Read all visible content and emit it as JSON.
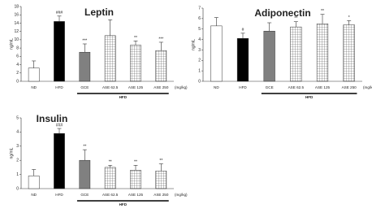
{
  "chart_data": [
    {
      "type": "bar",
      "title": "Leptin",
      "y_label": "ng/mL",
      "categories": [
        "ND",
        "HFD",
        "GCE",
        "ASE 62.5",
        "ASE 125",
        "ASE 250"
      ],
      "values": [
        3.2,
        14.4,
        7.0,
        11.0,
        8.7,
        7.4
      ],
      "errors": [
        1.7,
        1.3,
        2.0,
        3.8,
        1.0,
        2.0
      ],
      "annotations": [
        null,
        "###",
        "***",
        null,
        "**",
        "***"
      ],
      "colors": [
        "#ffffff",
        "#000000",
        "#808080",
        "#ffffff",
        "#ffffff",
        "#ffffff"
      ],
      "hatch": [
        false,
        false,
        false,
        true,
        true,
        true
      ],
      "group_label": "HFD",
      "unit_label": "(mg/kg)",
      "ylim": [
        0,
        18
      ],
      "yticks": [
        0,
        2,
        4,
        6,
        8,
        10,
        12,
        14,
        16,
        18
      ]
    },
    {
      "type": "bar",
      "title": "Adiponectin",
      "y_label": "ng/mL",
      "categories": [
        "ND",
        "HFD",
        "GCE",
        "ASE 62.5",
        "ASE 125",
        "ASE 250"
      ],
      "values": [
        5.3,
        4.1,
        4.8,
        5.2,
        5.5,
        5.4
      ],
      "errors": [
        0.8,
        0.5,
        0.8,
        0.5,
        0.9,
        0.4
      ],
      "annotations": [
        null,
        "#",
        null,
        "**",
        "**",
        "*"
      ],
      "colors": [
        "#ffffff",
        "#000000",
        "#808080",
        "#ffffff",
        "#ffffff",
        "#ffffff"
      ],
      "hatch": [
        false,
        false,
        false,
        true,
        true,
        true
      ],
      "group_label": "HFD",
      "unit_label": "(mg/kg)",
      "ylim": [
        0,
        7
      ],
      "yticks": [
        0,
        1,
        2,
        3,
        4,
        5,
        6,
        7
      ]
    },
    {
      "type": "bar",
      "title": "Insulin",
      "y_label": "ng/mL",
      "categories": [
        "ND",
        "HFD",
        "GCE",
        "ASE 62.5",
        "ASE 125",
        "ASE 250"
      ],
      "values": [
        0.9,
        3.9,
        2.0,
        1.5,
        1.3,
        1.25
      ],
      "errors": [
        0.45,
        0.35,
        0.75,
        0.15,
        0.35,
        0.5
      ],
      "annotations": [
        null,
        "###",
        "**",
        "**",
        "**",
        "**"
      ],
      "colors": [
        "#ffffff",
        "#000000",
        "#808080",
        "#ffffff",
        "#ffffff",
        "#ffffff"
      ],
      "hatch": [
        false,
        false,
        false,
        true,
        true,
        true
      ],
      "group_label": "HFD",
      "unit_label": "(mg/kg)",
      "ylim": [
        0,
        5
      ],
      "yticks": [
        0,
        1,
        2,
        3,
        4,
        5
      ]
    }
  ]
}
